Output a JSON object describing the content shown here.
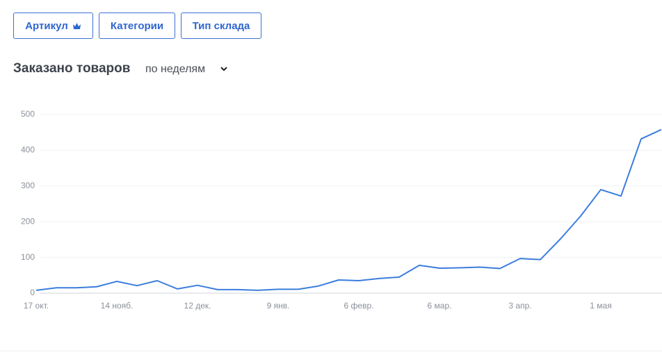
{
  "buttons": [
    "Артикул",
    "Категории",
    "Тип склада"
  ],
  "period": "по неделям",
  "chart_data": {
    "type": "line",
    "title": "Заказано товаров",
    "categories": [
      "17 окт.",
      null,
      null,
      null,
      "14 нояб.",
      null,
      null,
      null,
      "12 дек.",
      null,
      null,
      null,
      "9 янв.",
      null,
      null,
      null,
      "6 февр.",
      null,
      null,
      null,
      "6 мар.",
      null,
      null,
      null,
      "3 апр.",
      null,
      null,
      null,
      "1 мая",
      null,
      null,
      null
    ],
    "series": [
      {
        "color": "#3b7ddd",
        "values": [
          8,
          15,
          15,
          18,
          33,
          21,
          35,
          12,
          22,
          10,
          10,
          8,
          11,
          11,
          20,
          37,
          35,
          41,
          45,
          78,
          70,
          71,
          73,
          69,
          97,
          94,
          152,
          216,
          290,
          272,
          432,
          458
        ]
      }
    ],
    "ylim": [
      0,
      500
    ],
    "yticks": [
      0,
      100,
      200,
      300,
      400,
      500
    ],
    "grid": true
  }
}
